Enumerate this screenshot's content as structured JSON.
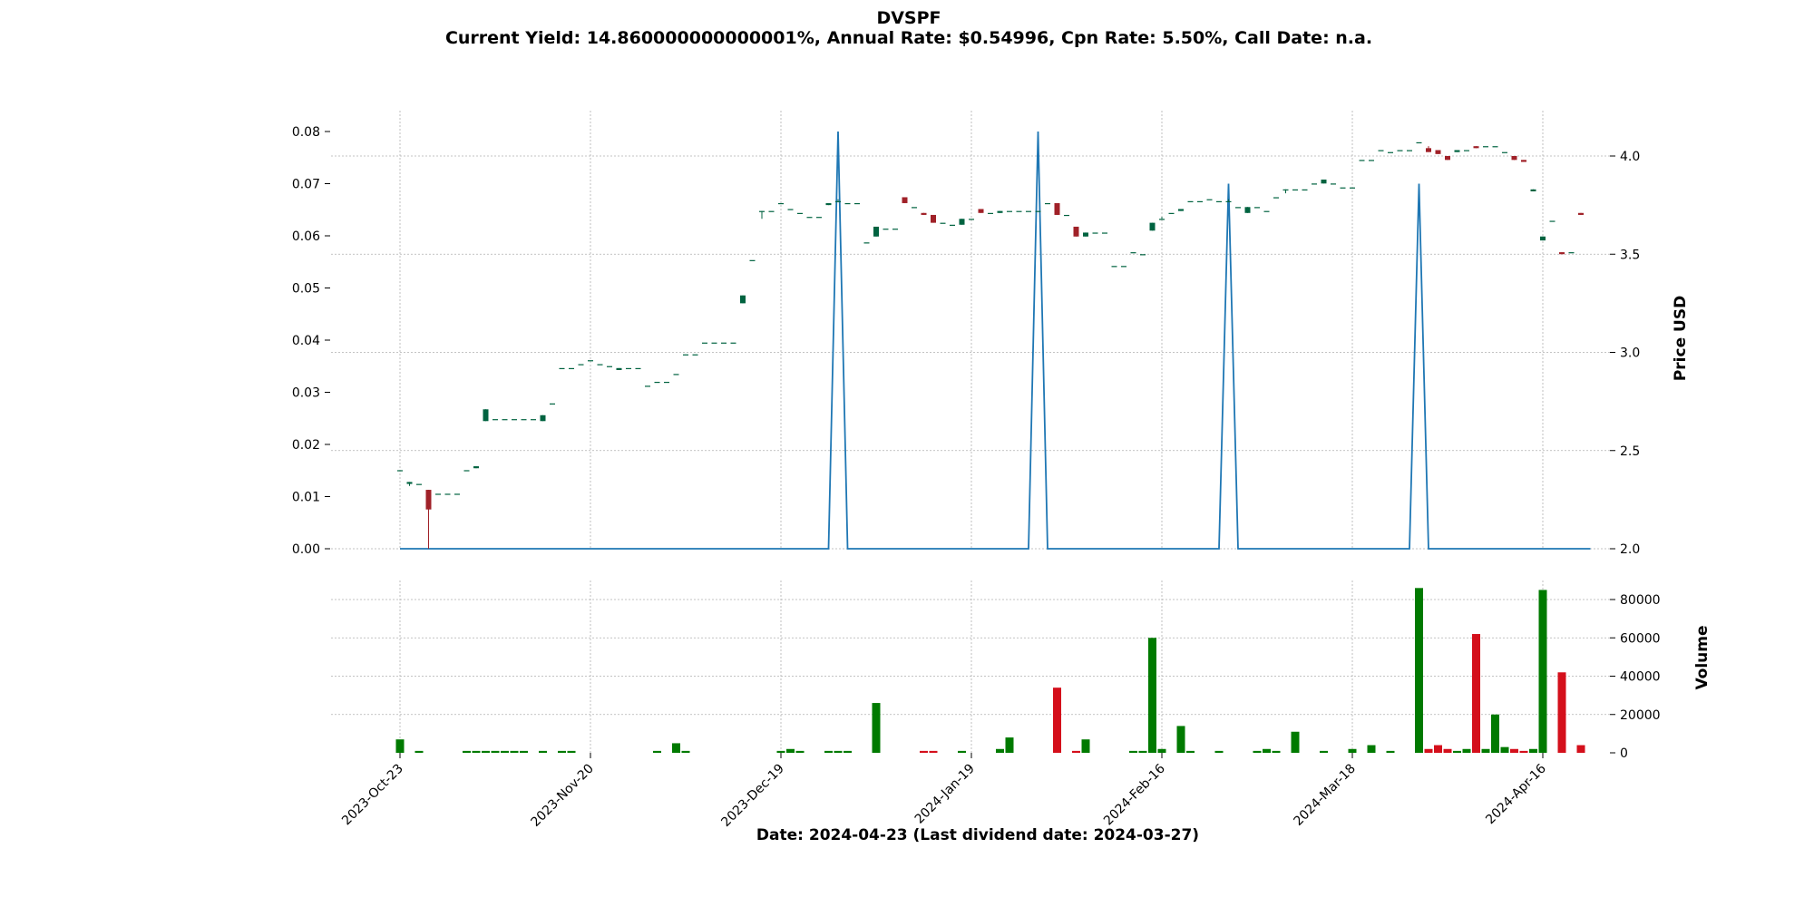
{
  "chart_data": {
    "type": "candlestick",
    "title": "DVSPF",
    "subtitle": "Current Yield: 14.860000000000001%, Annual Rate: $0.54996, Cpn Rate: 5.50%, Call Date: n.a.",
    "xlabel": "Date: 2024-04-23   (Last dividend date: 2024-03-27)",
    "ylabel_price": "Price USD",
    "ylabel_volume": "Volume",
    "price_ylim": [
      2.0,
      4.2
    ],
    "price_ticks": [
      "2.0",
      "2.5",
      "3.0",
      "3.5",
      "4.0"
    ],
    "dividend_ylim": [
      0.0,
      0.083
    ],
    "dividend_ticks": [
      "0.00",
      "0.01",
      "0.02",
      "0.03",
      "0.04",
      "0.05",
      "0.06",
      "0.07",
      "0.08"
    ],
    "volume_ylim": [
      0,
      88000
    ],
    "volume_ticks": [
      "0",
      "20000",
      "40000",
      "60000",
      "80000"
    ],
    "x_tick_labels": [
      {
        "index": 0,
        "label": "2023-Oct-23"
      },
      {
        "index": 20,
        "label": "2023-Nov-20"
      },
      {
        "index": 40,
        "label": "2023-Dec-19"
      },
      {
        "index": 60,
        "label": "2024-Jan-19"
      },
      {
        "index": 80,
        "label": "2024-Feb-16"
      },
      {
        "index": 100,
        "label": "2024-Mar-18"
      },
      {
        "index": 120,
        "label": "2024-Apr-16"
      }
    ],
    "grid": true,
    "up_color": "#006340",
    "down_color": "#a02128",
    "vol_up_color": "#007a00",
    "vol_down_color": "#d40f1b",
    "dividend_line_color": "#1f77b4",
    "dividend_spikes": [
      {
        "start": 45,
        "peak": 46,
        "end": 47,
        "value": 0.08
      },
      {
        "start": 66,
        "peak": 67,
        "end": 68,
        "value": 0.08
      },
      {
        "start": 86,
        "peak": 87,
        "end": 88,
        "value": 0.07
      },
      {
        "start": 106,
        "peak": 107,
        "end": 108,
        "value": 0.07
      }
    ],
    "dividend_range": [
      0,
      125
    ],
    "candles": [
      [
        0,
        2.4,
        2.4,
        2.4,
        2.4,
        7000
      ],
      [
        1,
        2.33,
        2.34,
        2.32,
        2.34,
        0
      ],
      [
        2,
        2.33,
        2.33,
        2.33,
        2.33,
        1000
      ],
      [
        3,
        2.3,
        2.3,
        2.0,
        2.2,
        0
      ],
      [
        4,
        2.28,
        2.28,
        2.28,
        2.28,
        0
      ],
      [
        5,
        2.28,
        2.28,
        2.28,
        2.28,
        0
      ],
      [
        6,
        2.28,
        2.28,
        2.28,
        2.28,
        0
      ],
      [
        7,
        2.4,
        2.4,
        2.4,
        2.4,
        1000
      ],
      [
        8,
        2.41,
        2.42,
        2.41,
        2.42,
        1000
      ],
      [
        9,
        2.65,
        2.71,
        2.65,
        2.71,
        1000
      ],
      [
        10,
        2.66,
        2.66,
        2.66,
        2.66,
        1000
      ],
      [
        11,
        2.66,
        2.66,
        2.66,
        2.66,
        1000
      ],
      [
        12,
        2.66,
        2.66,
        2.66,
        2.66,
        1000
      ],
      [
        13,
        2.66,
        2.66,
        2.66,
        2.66,
        1000
      ],
      [
        14,
        2.66,
        2.66,
        2.66,
        2.66,
        0
      ],
      [
        15,
        2.65,
        2.68,
        2.65,
        2.68,
        1000
      ],
      [
        16,
        2.74,
        2.74,
        2.74,
        2.74,
        0
      ],
      [
        17,
        2.92,
        2.92,
        2.92,
        2.92,
        1000
      ],
      [
        18,
        2.92,
        2.92,
        2.92,
        2.92,
        1000
      ],
      [
        19,
        2.94,
        2.94,
        2.94,
        2.94,
        0
      ],
      [
        20,
        2.96,
        2.96,
        2.96,
        2.96,
        0
      ],
      [
        21,
        2.94,
        2.94,
        2.94,
        2.94,
        0
      ],
      [
        22,
        2.93,
        2.93,
        2.93,
        2.93,
        0
      ],
      [
        23,
        2.91,
        2.92,
        2.91,
        2.92,
        0
      ],
      [
        24,
        2.92,
        2.92,
        2.92,
        2.92,
        0
      ],
      [
        25,
        2.92,
        2.92,
        2.92,
        2.92,
        0
      ],
      [
        26,
        2.83,
        2.83,
        2.83,
        2.83,
        0
      ],
      [
        27,
        2.85,
        2.85,
        2.85,
        2.85,
        1000
      ],
      [
        28,
        2.85,
        2.85,
        2.85,
        2.85,
        0
      ],
      [
        29,
        2.89,
        2.89,
        2.89,
        2.89,
        5000
      ],
      [
        30,
        2.99,
        2.99,
        2.99,
        2.99,
        1000
      ],
      [
        31,
        2.99,
        2.99,
        2.99,
        2.99,
        0
      ],
      [
        32,
        3.05,
        3.05,
        3.05,
        3.05,
        0
      ],
      [
        33,
        3.05,
        3.05,
        3.05,
        3.05,
        0
      ],
      [
        34,
        3.05,
        3.05,
        3.05,
        3.05,
        0
      ],
      [
        35,
        3.05,
        3.05,
        3.05,
        3.05,
        0
      ],
      [
        36,
        3.25,
        3.29,
        3.25,
        3.29,
        0
      ],
      [
        37,
        3.47,
        3.47,
        3.47,
        3.47,
        0
      ],
      [
        38,
        3.72,
        3.72,
        3.68,
        3.72,
        0
      ],
      [
        39,
        3.72,
        3.72,
        3.72,
        3.72,
        0
      ],
      [
        40,
        3.76,
        3.76,
        3.76,
        3.76,
        1000
      ],
      [
        41,
        3.73,
        3.73,
        3.73,
        3.73,
        2000
      ],
      [
        42,
        3.71,
        3.71,
        3.71,
        3.71,
        1000
      ],
      [
        43,
        3.69,
        3.69,
        3.69,
        3.69,
        0
      ],
      [
        44,
        3.69,
        3.69,
        3.69,
        3.69,
        0
      ],
      [
        45,
        3.75,
        3.76,
        3.75,
        3.76,
        1000
      ],
      [
        46,
        3.77,
        3.78,
        3.77,
        3.77,
        1000
      ],
      [
        47,
        3.76,
        3.76,
        3.76,
        3.76,
        1000
      ],
      [
        48,
        3.76,
        3.76,
        3.76,
        3.76,
        0
      ],
      [
        49,
        3.56,
        3.56,
        3.56,
        3.56,
        0
      ],
      [
        50,
        3.59,
        3.64,
        3.59,
        3.64,
        26000
      ],
      [
        51,
        3.63,
        3.63,
        3.63,
        3.63,
        0
      ],
      [
        52,
        3.63,
        3.63,
        3.63,
        3.63,
        0
      ],
      [
        53,
        3.79,
        3.79,
        3.76,
        3.76,
        0
      ],
      [
        54,
        3.74,
        3.74,
        3.74,
        3.74,
        0
      ],
      [
        55,
        3.71,
        3.71,
        3.7,
        3.7,
        1000
      ],
      [
        56,
        3.7,
        3.7,
        3.66,
        3.66,
        1000
      ],
      [
        57,
        3.66,
        3.66,
        3.66,
        3.66,
        0
      ],
      [
        58,
        3.65,
        3.65,
        3.65,
        3.65,
        0
      ],
      [
        59,
        3.65,
        3.68,
        3.65,
        3.68,
        1000
      ],
      [
        60,
        3.68,
        3.68,
        3.68,
        3.68,
        0
      ],
      [
        61,
        3.73,
        3.73,
        3.71,
        3.71,
        0
      ],
      [
        62,
        3.71,
        3.71,
        3.71,
        3.71,
        0
      ],
      [
        63,
        3.71,
        3.72,
        3.71,
        3.72,
        2000
      ],
      [
        64,
        3.72,
        3.72,
        3.72,
        3.72,
        8000
      ],
      [
        65,
        3.72,
        3.72,
        3.72,
        3.72,
        0
      ],
      [
        66,
        3.72,
        3.72,
        3.72,
        3.72,
        0
      ],
      [
        67,
        3.72,
        3.72,
        3.72,
        3.72,
        0
      ],
      [
        68,
        3.76,
        3.76,
        3.76,
        3.76,
        0
      ],
      [
        69,
        3.76,
        3.76,
        3.7,
        3.7,
        34000
      ],
      [
        70,
        3.7,
        3.7,
        3.7,
        3.7,
        0
      ],
      [
        71,
        3.64,
        3.64,
        3.59,
        3.59,
        1000
      ],
      [
        72,
        3.59,
        3.61,
        3.59,
        3.61,
        7000
      ],
      [
        73,
        3.61,
        3.61,
        3.61,
        3.61,
        0
      ],
      [
        74,
        3.61,
        3.61,
        3.61,
        3.61,
        0
      ],
      [
        75,
        3.44,
        3.44,
        3.44,
        3.44,
        0
      ],
      [
        76,
        3.44,
        3.44,
        3.44,
        3.44,
        0
      ],
      [
        77,
        3.51,
        3.51,
        3.51,
        3.51,
        1000
      ],
      [
        78,
        3.5,
        3.5,
        3.5,
        3.5,
        1000
      ],
      [
        79,
        3.62,
        3.66,
        3.62,
        3.66,
        60000
      ],
      [
        80,
        3.68,
        3.69,
        3.68,
        3.68,
        2000
      ],
      [
        81,
        3.71,
        3.71,
        3.71,
        3.71,
        0
      ],
      [
        82,
        3.72,
        3.73,
        3.72,
        3.73,
        14000
      ],
      [
        83,
        3.77,
        3.77,
        3.77,
        3.77,
        1000
      ],
      [
        84,
        3.77,
        3.77,
        3.77,
        3.77,
        0
      ],
      [
        85,
        3.78,
        3.78,
        3.78,
        3.78,
        0
      ],
      [
        86,
        3.77,
        3.77,
        3.77,
        3.77,
        1000
      ],
      [
        87,
        3.77,
        3.78,
        3.77,
        3.77,
        0
      ],
      [
        88,
        3.74,
        3.74,
        3.74,
        3.74,
        0
      ],
      [
        89,
        3.71,
        3.74,
        3.71,
        3.74,
        0
      ],
      [
        90,
        3.74,
        3.74,
        3.74,
        3.74,
        1000
      ],
      [
        91,
        3.72,
        3.72,
        3.72,
        3.72,
        2000
      ],
      [
        92,
        3.79,
        3.79,
        3.79,
        3.79,
        1000
      ],
      [
        93,
        3.83,
        3.83,
        3.81,
        3.83,
        0
      ],
      [
        94,
        3.83,
        3.83,
        3.83,
        3.83,
        11000
      ],
      [
        95,
        3.83,
        3.83,
        3.83,
        3.83,
        0
      ],
      [
        96,
        3.86,
        3.86,
        3.86,
        3.86,
        0
      ],
      [
        97,
        3.86,
        3.88,
        3.86,
        3.88,
        1000
      ],
      [
        98,
        3.86,
        3.86,
        3.86,
        3.86,
        0
      ],
      [
        99,
        3.84,
        3.84,
        3.84,
        3.84,
        0
      ],
      [
        100,
        3.84,
        3.84,
        3.84,
        3.84,
        2000
      ],
      [
        101,
        3.98,
        3.98,
        3.98,
        3.98,
        0
      ],
      [
        102,
        3.98,
        3.98,
        3.98,
        3.98,
        4000
      ],
      [
        103,
        4.03,
        4.03,
        4.03,
        4.03,
        0
      ],
      [
        104,
        4.02,
        4.02,
        4.02,
        4.02,
        1000
      ],
      [
        105,
        4.03,
        4.03,
        4.03,
        4.03,
        0
      ],
      [
        106,
        4.03,
        4.03,
        4.03,
        4.03,
        0
      ],
      [
        107,
        4.07,
        4.07,
        4.07,
        4.07,
        86000
      ],
      [
        108,
        4.04,
        4.05,
        4.02,
        4.02,
        2000
      ],
      [
        109,
        4.03,
        4.03,
        4.01,
        4.01,
        4000
      ],
      [
        110,
        4.0,
        4.0,
        3.98,
        3.98,
        2000
      ],
      [
        111,
        4.02,
        4.03,
        4.02,
        4.03,
        1000
      ],
      [
        112,
        4.03,
        4.03,
        4.03,
        4.03,
        2000
      ],
      [
        113,
        4.05,
        4.05,
        4.04,
        4.04,
        62000
      ],
      [
        114,
        4.05,
        4.05,
        4.05,
        4.05,
        2000
      ],
      [
        115,
        4.05,
        4.05,
        4.05,
        4.05,
        20000
      ],
      [
        116,
        4.02,
        4.02,
        4.02,
        4.02,
        3000
      ],
      [
        117,
        4.0,
        4.0,
        3.98,
        3.98,
        2000
      ],
      [
        118,
        3.98,
        3.98,
        3.97,
        3.97,
        1000
      ],
      [
        119,
        3.82,
        3.83,
        3.82,
        3.83,
        2000
      ],
      [
        120,
        3.57,
        3.59,
        3.57,
        3.59,
        85000
      ],
      [
        121,
        3.67,
        3.67,
        3.67,
        3.67,
        0
      ],
      [
        122,
        3.51,
        3.51,
        3.5,
        3.5,
        42000
      ],
      [
        123,
        3.51,
        3.51,
        3.51,
        3.51,
        0
      ],
      [
        124,
        3.71,
        3.71,
        3.7,
        3.7,
        4000
      ]
    ]
  }
}
